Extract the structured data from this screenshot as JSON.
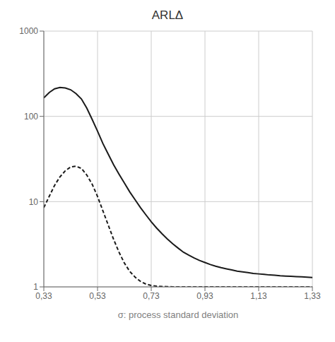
{
  "chart_data": {
    "type": "line",
    "title": "ARLΔ",
    "xlabel": "σ: process standard deviation",
    "log": "y",
    "grid": true,
    "xlim": [
      0.33,
      1.33
    ],
    "ylim": [
      1,
      1000
    ],
    "xticks": [
      {
        "value": 0.33,
        "label": "0,33"
      },
      {
        "value": 0.53,
        "label": "0,53"
      },
      {
        "value": 0.73,
        "label": "0,73"
      },
      {
        "value": 0.93,
        "label": "0,93"
      },
      {
        "value": 1.13,
        "label": "1,13"
      },
      {
        "value": 1.33,
        "label": "1,33"
      }
    ],
    "yticks": [
      1,
      10,
      100,
      1000
    ],
    "x": [
      0.33,
      0.35,
      0.37,
      0.39,
      0.41,
      0.43,
      0.45,
      0.47,
      0.49,
      0.51,
      0.53,
      0.55,
      0.57,
      0.59,
      0.61,
      0.63,
      0.65,
      0.67,
      0.69,
      0.71,
      0.73,
      0.75,
      0.77,
      0.79,
      0.81,
      0.83,
      0.85,
      0.87,
      0.89,
      0.91,
      0.93,
      0.95,
      0.97,
      0.99,
      1.01,
      1.03,
      1.05,
      1.07,
      1.09,
      1.11,
      1.13,
      1.15,
      1.17,
      1.19,
      1.21,
      1.23,
      1.25,
      1.27,
      1.29,
      1.31,
      1.33
    ],
    "series": [
      {
        "color": "#1a1a1a",
        "line_style": "solid",
        "values": [
          165,
          190,
          210,
          218,
          215,
          205,
          185,
          160,
          125,
          92,
          67,
          48,
          36,
          27,
          21,
          16.5,
          13.0,
          10.5,
          8.5,
          7.0,
          5.8,
          4.9,
          4.2,
          3.65,
          3.2,
          2.85,
          2.55,
          2.35,
          2.18,
          2.04,
          1.93,
          1.83,
          1.75,
          1.68,
          1.63,
          1.58,
          1.53,
          1.5,
          1.47,
          1.44,
          1.42,
          1.4,
          1.38,
          1.37,
          1.35,
          1.34,
          1.33,
          1.32,
          1.31,
          1.3,
          1.29
        ]
      },
      {
        "color": "#1a1a1a",
        "line_style": "dashed",
        "values": [
          8.5,
          11.5,
          15.5,
          19.5,
          23.0,
          25.5,
          26.0,
          24.5,
          20.5,
          16.0,
          11.5,
          7.8,
          5.3,
          3.6,
          2.55,
          1.9,
          1.52,
          1.3,
          1.16,
          1.08,
          1.04,
          1.02,
          1.01,
          1.005,
          1.002,
          1.001,
          1.001,
          1.001,
          1.0,
          1.0,
          1.0,
          1.0,
          1.0,
          1.0,
          1.0,
          1.0,
          1.0,
          1.0,
          1.0,
          1.0,
          1.0,
          1.0,
          1.0,
          1.0,
          1.0,
          1.0,
          1.0,
          1.0,
          1.0,
          1.0,
          1.0
        ]
      }
    ]
  }
}
